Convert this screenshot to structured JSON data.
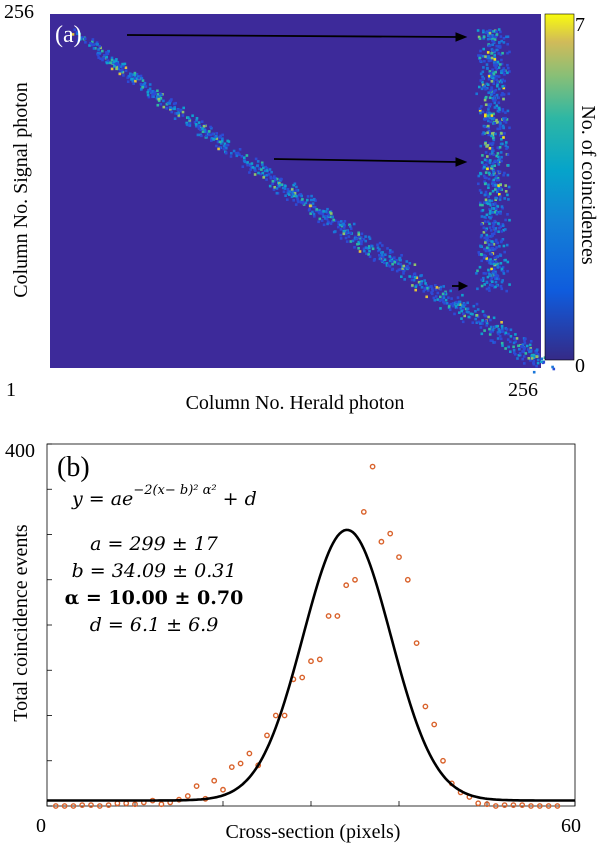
{
  "panel_a": {
    "label": "(a)",
    "xlabel": "Column No. Herald photon",
    "ylabel": "Column No. Signal photon",
    "x_tick_min": "1",
    "x_tick_max": "256",
    "y_tick_max": "256",
    "colorbar_label": "No. of coincidences",
    "colorbar_ticks": [
      "0",
      "7"
    ],
    "colors": {
      "background": "#3d2a9a",
      "low": "#1e7bd8",
      "mid": "#1fb3c4",
      "high": "#f5e11a"
    }
  },
  "panel_b": {
    "label": "(b)",
    "equation": "y = ae",
    "exponent": "−2(x− b)²  α²",
    "equation_tail": "+ d",
    "params": [
      {
        "text": "a = 299 ± 17",
        "bold": false
      },
      {
        "text": "b = 34.09 ± 0.31",
        "bold": false
      },
      {
        "text": "α = 10.00 ± 0.70",
        "bold": true
      },
      {
        "text": "d = 6.1 ± 6.9",
        "bold": false
      }
    ],
    "point_color": "#d9622b",
    "fit_color": "#000000"
  },
  "chart_data": [
    {
      "type": "heatmap",
      "title": "",
      "xlabel": "Column No. Herald photon",
      "ylabel": "Column No. Signal photon",
      "xlim": [
        1,
        256
      ],
      "ylim": [
        1,
        256
      ],
      "colorbar_label": "No. of coincidences",
      "color_range": [
        0,
        7
      ],
      "annotations": [
        "diagonal correlation band from top-left to bottom-right",
        "inset: vertical cross-section band with three arrows"
      ]
    },
    {
      "type": "scatter",
      "title": "",
      "xlabel": "Cross-section (pixels)",
      "ylabel": "Total coincidence events",
      "xlim": [
        0,
        60
      ],
      "ylim": [
        0,
        400
      ],
      "x_ticks": [
        "0",
        "60"
      ],
      "y_ticks": [
        "400"
      ],
      "series": [
        {
          "kind": "points",
          "x": [
            1,
            2,
            3,
            4,
            5,
            6,
            7,
            8,
            9,
            10,
            11,
            12,
            13,
            14,
            15,
            16,
            17,
            18,
            19,
            20,
            21,
            22,
            23,
            24,
            25,
            26,
            27,
            28,
            29,
            30,
            31,
            32,
            33,
            34,
            35,
            36,
            37,
            38,
            39,
            40,
            41,
            42,
            43,
            44,
            45,
            46,
            47,
            48,
            49,
            50,
            51,
            52,
            53,
            54,
            55,
            56,
            57,
            58
          ],
          "y": [
            0,
            0,
            0,
            1,
            1,
            0,
            1,
            3,
            3,
            2,
            4,
            6,
            2,
            4,
            7,
            11,
            22,
            8,
            28,
            18,
            43,
            47,
            58,
            45,
            78,
            100,
            100,
            140,
            142,
            160,
            162,
            210,
            210,
            244,
            250,
            325,
            375,
            292,
            301,
            275,
            250,
            180,
            110,
            90,
            50,
            25,
            15,
            10,
            3,
            2,
            0,
            1,
            1,
            1,
            0,
            0,
            0,
            0
          ]
        },
        {
          "kind": "fit",
          "a": 299,
          "b": 34.09,
          "alpha": 10.0,
          "d": 6.1
        }
      ]
    }
  ]
}
